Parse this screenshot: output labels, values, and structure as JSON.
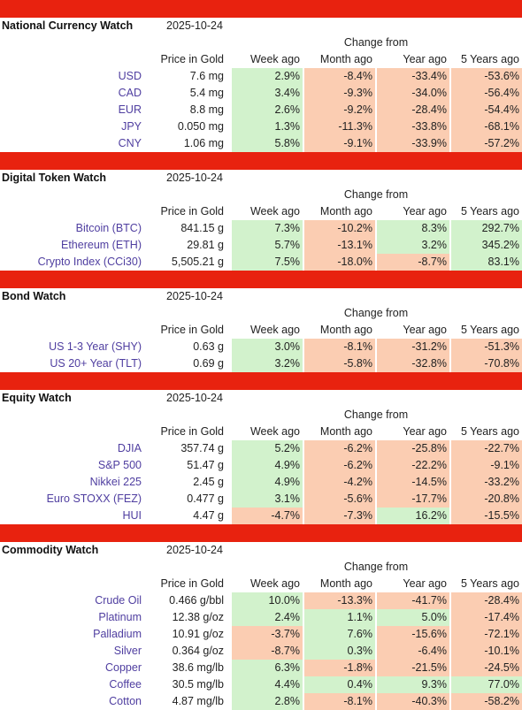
{
  "labels": {
    "change_from": "Change from",
    "price_in_gold": "Price in Gold",
    "week_ago": "Week ago",
    "month_ago": "Month ago",
    "year_ago": "Year ago",
    "five_years_ago": "5 Years ago"
  },
  "colors": {
    "separator": "#e8220f",
    "positive": "#d2f2cc",
    "negative": "#fbcdb2",
    "link": "#4f3ea0"
  },
  "sections": [
    {
      "title": "National Currency Watch",
      "date": "2025-10-24",
      "rows": [
        {
          "name": "USD",
          "price": "7.6 mg",
          "week": "2.9%",
          "month": "-8.4%",
          "year": "-33.4%",
          "five": "-53.6%"
        },
        {
          "name": "CAD",
          "price": "5.4 mg",
          "week": "3.4%",
          "month": "-9.3%",
          "year": "-34.0%",
          "five": "-56.4%"
        },
        {
          "name": "EUR",
          "price": "8.8 mg",
          "week": "2.6%",
          "month": "-9.2%",
          "year": "-28.4%",
          "five": "-54.4%"
        },
        {
          "name": "JPY",
          "price": "0.050 mg",
          "week": "1.3%",
          "month": "-11.3%",
          "year": "-33.8%",
          "five": "-68.1%"
        },
        {
          "name": "CNY",
          "price": "1.06 mg",
          "week": "5.8%",
          "month": "-9.1%",
          "year": "-33.9%",
          "five": "-57.2%"
        }
      ]
    },
    {
      "title": "Digital Token Watch",
      "date": "2025-10-24",
      "rows": [
        {
          "name": "Bitcoin (BTC)",
          "price": "841.15 g",
          "week": "7.3%",
          "month": "-10.2%",
          "year": "8.3%",
          "five": "292.7%"
        },
        {
          "name": "Ethereum (ETH)",
          "price": "29.81 g",
          "week": "5.7%",
          "month": "-13.1%",
          "year": "3.2%",
          "five": "345.2%"
        },
        {
          "name": "Crypto Index (CCi30)",
          "price": "5,505.21 g",
          "week": "7.5%",
          "month": "-18.0%",
          "year": "-8.7%",
          "five": "83.1%"
        }
      ]
    },
    {
      "title": "Bond Watch",
      "date": "2025-10-24",
      "rows": [
        {
          "name": "US 1-3 Year (SHY)",
          "price": "0.63 g",
          "week": "3.0%",
          "month": "-8.1%",
          "year": "-31.2%",
          "five": "-51.3%"
        },
        {
          "name": "US 20+ Year (TLT)",
          "price": "0.69 g",
          "week": "3.2%",
          "month": "-5.8%",
          "year": "-32.8%",
          "five": "-70.8%"
        }
      ]
    },
    {
      "title": "Equity Watch",
      "date": "2025-10-24",
      "rows": [
        {
          "name": "DJIA",
          "price": "357.74 g",
          "week": "5.2%",
          "month": "-6.2%",
          "year": "-25.8%",
          "five": "-22.7%"
        },
        {
          "name": "S&P 500",
          "price": "51.47 g",
          "week": "4.9%",
          "month": "-6.2%",
          "year": "-22.2%",
          "five": "-9.1%"
        },
        {
          "name": "Nikkei 225",
          "price": "2.45 g",
          "week": "4.9%",
          "month": "-4.2%",
          "year": "-14.5%",
          "five": "-33.2%"
        },
        {
          "name": "Euro STOXX (FEZ)",
          "price": "0.477 g",
          "week": "3.1%",
          "month": "-5.6%",
          "year": "-17.7%",
          "five": "-20.8%"
        },
        {
          "name": "HUI",
          "price": "4.47 g",
          "week": "-4.7%",
          "month": "-7.3%",
          "year": "16.2%",
          "five": "-15.5%"
        }
      ]
    },
    {
      "title": "Commodity Watch",
      "date": "2025-10-24",
      "rows": [
        {
          "name": "Crude Oil",
          "price": "0.466 g/bbl",
          "week": "10.0%",
          "month": "-13.3%",
          "year": "-41.7%",
          "five": "-28.4%"
        },
        {
          "name": "Platinum",
          "price": "12.38 g/oz",
          "week": "2.4%",
          "month": "1.1%",
          "year": "5.0%",
          "five": "-17.4%"
        },
        {
          "name": "Palladium",
          "price": "10.91 g/oz",
          "week": "-3.7%",
          "month": "7.6%",
          "year": "-15.6%",
          "five": "-72.1%"
        },
        {
          "name": "Silver",
          "price": "0.364 g/oz",
          "week": "-8.7%",
          "month": "0.3%",
          "year": "-6.4%",
          "five": "-10.1%"
        },
        {
          "name": "Copper",
          "price": "38.6 mg/lb",
          "week": "6.3%",
          "month": "-1.8%",
          "year": "-21.5%",
          "five": "-24.5%"
        },
        {
          "name": "Coffee",
          "price": "30.5 mg/lb",
          "week": "4.4%",
          "month": "0.4%",
          "year": "9.3%",
          "five": "77.0%"
        },
        {
          "name": "Cotton",
          "price": "4.87 mg/lb",
          "week": "2.8%",
          "month": "-8.1%",
          "year": "-40.3%",
          "five": "-58.2%"
        }
      ]
    }
  ]
}
